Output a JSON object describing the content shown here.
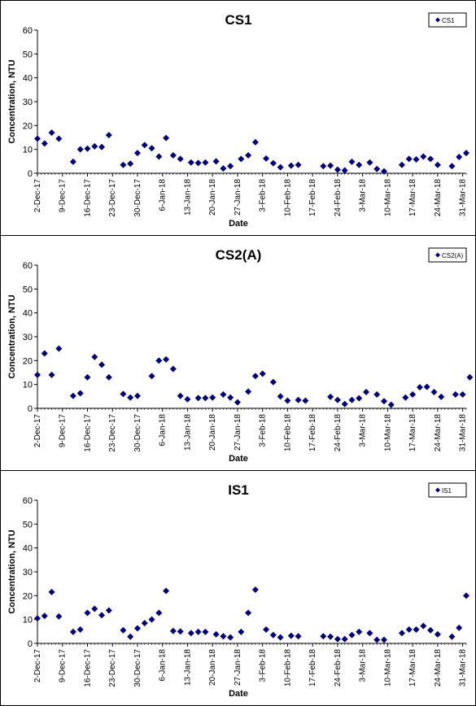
{
  "chart_data": [
    {
      "type": "scatter",
      "title": "CS1",
      "ylabel": "Concentration, NTU",
      "xlabel": "Date",
      "ylim": [
        0,
        60
      ],
      "yticks": [
        0,
        10,
        20,
        30,
        40,
        50,
        60
      ],
      "xlim": [
        "2017-12-02",
        "2018-04-01"
      ],
      "xtick_labels": [
        "2-Dec-17",
        "9-Dec-17",
        "16-Dec-17",
        "23-Dec-17",
        "30-Dec-17",
        "6-Jan-18",
        "13-Jan-18",
        "20-Jan-18",
        "27-Jan-18",
        "3-Feb-18",
        "10-Feb-18",
        "17-Feb-18",
        "24-Feb-18",
        "3-Mar-18",
        "10-Mar-18",
        "17-Mar-18",
        "24-Mar-18",
        "31-Mar-18"
      ],
      "legend": "top-right",
      "grid": false,
      "marker_color": "#00008b",
      "series": [
        {
          "name": "CS1",
          "points": [
            [
              "2017-12-02",
              14.5
            ],
            [
              "2017-12-04",
              12.5
            ],
            [
              "2017-12-06",
              17.0
            ],
            [
              "2017-12-08",
              14.5
            ],
            [
              "2017-12-12",
              4.8
            ],
            [
              "2017-12-14",
              10.0
            ],
            [
              "2017-12-16",
              10.3
            ],
            [
              "2017-12-18",
              11.3
            ],
            [
              "2017-12-20",
              11.0
            ],
            [
              "2017-12-22",
              16.0
            ],
            [
              "2017-12-26",
              3.5
            ],
            [
              "2017-12-28",
              4.0
            ],
            [
              "2017-12-30",
              8.5
            ],
            [
              "2018-01-01",
              11.8
            ],
            [
              "2018-01-03",
              10.5
            ],
            [
              "2018-01-05",
              7.0
            ],
            [
              "2018-01-07",
              14.8
            ],
            [
              "2018-01-09",
              7.5
            ],
            [
              "2018-01-11",
              6.0
            ],
            [
              "2018-01-14",
              4.5
            ],
            [
              "2018-01-16",
              4.3
            ],
            [
              "2018-01-18",
              4.5
            ],
            [
              "2018-01-21",
              5.0
            ],
            [
              "2018-01-23",
              2.0
            ],
            [
              "2018-01-25",
              3.0
            ],
            [
              "2018-01-28",
              6.0
            ],
            [
              "2018-01-30",
              7.5
            ],
            [
              "2018-02-01",
              13.0
            ],
            [
              "2018-02-04",
              6.2
            ],
            [
              "2018-02-06",
              4.2
            ],
            [
              "2018-02-08",
              2.5
            ],
            [
              "2018-02-11",
              3.2
            ],
            [
              "2018-02-13",
              3.5
            ],
            [
              "2018-02-20",
              3.0
            ],
            [
              "2018-02-22",
              3.2
            ],
            [
              "2018-02-24",
              1.5
            ],
            [
              "2018-02-26",
              1.2
            ],
            [
              "2018-02-28",
              4.8
            ],
            [
              "2018-03-02",
              3.5
            ],
            [
              "2018-03-05",
              4.5
            ],
            [
              "2018-03-07",
              1.8
            ],
            [
              "2018-03-09",
              0.8
            ],
            [
              "2018-03-14",
              3.5
            ],
            [
              "2018-03-16",
              6.0
            ],
            [
              "2018-03-18",
              5.8
            ],
            [
              "2018-03-20",
              7.0
            ],
            [
              "2018-03-22",
              6.0
            ],
            [
              "2018-03-24",
              3.5
            ],
            [
              "2018-03-28",
              3.0
            ],
            [
              "2018-03-30",
              6.8
            ],
            [
              "2018-04-01",
              8.5
            ]
          ]
        }
      ]
    },
    {
      "type": "scatter",
      "title": "CS2(A)",
      "ylabel": "Concentration, NTU",
      "xlabel": "Date",
      "ylim": [
        0,
        60
      ],
      "yticks": [
        0,
        10,
        20,
        30,
        40,
        50,
        60
      ],
      "xlim": [
        "2017-12-02",
        "2018-04-01"
      ],
      "xtick_labels": [
        "2-Dec-17",
        "9-Dec-17",
        "16-Dec-17",
        "23-Dec-17",
        "30-Dec-17",
        "6-Jan-18",
        "13-Jan-18",
        "20-Jan-18",
        "27-Jan-18",
        "3-Feb-18",
        "10-Feb-18",
        "17-Feb-18",
        "24-Feb-18",
        "3-Mar-18",
        "10-Mar-18",
        "17-Mar-18",
        "24-Mar-18",
        "31-Mar-18"
      ],
      "legend": "top-right",
      "grid": false,
      "marker_color": "#00008b",
      "series": [
        {
          "name": "CS2(A)",
          "points": [
            [
              "2017-12-02",
              14.0
            ],
            [
              "2017-12-04",
              23.0
            ],
            [
              "2017-12-06",
              14.0
            ],
            [
              "2017-12-08",
              25.0
            ],
            [
              "2017-12-12",
              5.2
            ],
            [
              "2017-12-14",
              6.3
            ],
            [
              "2017-12-16",
              13.0
            ],
            [
              "2017-12-18",
              21.5
            ],
            [
              "2017-12-20",
              18.3
            ],
            [
              "2017-12-22",
              13.0
            ],
            [
              "2017-12-26",
              6.0
            ],
            [
              "2017-12-28",
              4.5
            ],
            [
              "2017-12-30",
              5.2
            ],
            [
              "2018-01-03",
              13.5
            ],
            [
              "2018-01-05",
              20.0
            ],
            [
              "2018-01-07",
              20.5
            ],
            [
              "2018-01-09",
              16.5
            ],
            [
              "2018-01-11",
              5.2
            ],
            [
              "2018-01-13",
              3.8
            ],
            [
              "2018-01-16",
              4.3
            ],
            [
              "2018-01-18",
              4.3
            ],
            [
              "2018-01-20",
              4.5
            ],
            [
              "2018-01-23",
              5.8
            ],
            [
              "2018-01-25",
              4.5
            ],
            [
              "2018-01-27",
              2.5
            ],
            [
              "2018-01-30",
              7.0
            ],
            [
              "2018-02-01",
              13.5
            ],
            [
              "2018-02-03",
              14.5
            ],
            [
              "2018-02-06",
              11.0
            ],
            [
              "2018-02-08",
              5.0
            ],
            [
              "2018-02-10",
              3.2
            ],
            [
              "2018-02-13",
              3.5
            ],
            [
              "2018-02-15",
              3.2
            ],
            [
              "2018-02-22",
              4.8
            ],
            [
              "2018-02-24",
              3.5
            ],
            [
              "2018-02-26",
              1.8
            ],
            [
              "2018-02-28",
              3.5
            ],
            [
              "2018-03-02",
              4.2
            ],
            [
              "2018-03-04",
              6.8
            ],
            [
              "2018-03-07",
              5.8
            ],
            [
              "2018-03-09",
              3.0
            ],
            [
              "2018-03-11",
              1.5
            ],
            [
              "2018-03-15",
              4.5
            ],
            [
              "2018-03-17",
              5.8
            ],
            [
              "2018-03-19",
              8.8
            ],
            [
              "2018-03-21",
              9.0
            ],
            [
              "2018-03-23",
              6.8
            ],
            [
              "2018-03-25",
              4.8
            ],
            [
              "2018-03-29",
              5.8
            ],
            [
              "2018-03-31",
              5.8
            ],
            [
              "2018-04-02",
              13.0
            ]
          ]
        }
      ]
    },
    {
      "type": "scatter",
      "title": "IS1",
      "ylabel": "Concentration, NTU",
      "xlabel": "Date",
      "ylim": [
        0,
        60
      ],
      "yticks": [
        0,
        10,
        20,
        30,
        40,
        50,
        60
      ],
      "xlim": [
        "2017-12-02",
        "2018-04-01"
      ],
      "xtick_labels": [
        "2-Dec-17",
        "9-Dec-17",
        "16-Dec-17",
        "23-Dec-17",
        "30-Dec-17",
        "6-Jan-18",
        "13-Jan-18",
        "20-Jan-18",
        "27-Jan-18",
        "3-Feb-18",
        "10-Feb-18",
        "17-Feb-18",
        "24-Feb-18",
        "3-Mar-18",
        "10-Mar-18",
        "17-Mar-18",
        "24-Mar-18",
        "31-Mar-18"
      ],
      "legend": "top-right",
      "grid": false,
      "marker_color": "#00008b",
      "series": [
        {
          "name": "IS1",
          "points": [
            [
              "2017-12-02",
              10.5
            ],
            [
              "2017-12-04",
              11.5
            ],
            [
              "2017-12-06",
              21.5
            ],
            [
              "2017-12-08",
              11.3
            ],
            [
              "2017-12-12",
              4.8
            ],
            [
              "2017-12-14",
              5.8
            ],
            [
              "2017-12-16",
              12.8
            ],
            [
              "2017-12-18",
              14.5
            ],
            [
              "2017-12-20",
              11.8
            ],
            [
              "2017-12-22",
              13.8
            ],
            [
              "2017-12-26",
              5.5
            ],
            [
              "2017-12-28",
              2.8
            ],
            [
              "2017-12-30",
              6.3
            ],
            [
              "2018-01-01",
              8.5
            ],
            [
              "2018-01-03",
              10.0
            ],
            [
              "2018-01-05",
              12.8
            ],
            [
              "2018-01-07",
              22.0
            ],
            [
              "2018-01-09",
              5.2
            ],
            [
              "2018-01-11",
              5.0
            ],
            [
              "2018-01-14",
              4.3
            ],
            [
              "2018-01-16",
              4.8
            ],
            [
              "2018-01-18",
              4.8
            ],
            [
              "2018-01-21",
              3.8
            ],
            [
              "2018-01-23",
              3.0
            ],
            [
              "2018-01-25",
              2.5
            ],
            [
              "2018-01-28",
              4.8
            ],
            [
              "2018-01-30",
              12.8
            ],
            [
              "2018-02-01",
              22.5
            ],
            [
              "2018-02-04",
              5.8
            ],
            [
              "2018-02-06",
              3.5
            ],
            [
              "2018-02-08",
              2.5
            ],
            [
              "2018-02-11",
              3.2
            ],
            [
              "2018-02-13",
              3.0
            ],
            [
              "2018-02-20",
              3.0
            ],
            [
              "2018-02-22",
              2.8
            ],
            [
              "2018-02-24",
              1.8
            ],
            [
              "2018-02-26",
              1.8
            ],
            [
              "2018-02-28",
              3.5
            ],
            [
              "2018-03-02",
              4.8
            ],
            [
              "2018-03-05",
              4.3
            ],
            [
              "2018-03-07",
              1.5
            ],
            [
              "2018-03-09",
              1.5
            ],
            [
              "2018-03-14",
              4.3
            ],
            [
              "2018-03-16",
              5.8
            ],
            [
              "2018-03-18",
              5.8
            ],
            [
              "2018-03-20",
              7.3
            ],
            [
              "2018-03-22",
              5.5
            ],
            [
              "2018-03-24",
              3.8
            ],
            [
              "2018-03-28",
              2.8
            ],
            [
              "2018-03-30",
              6.5
            ],
            [
              "2018-04-01",
              20.0
            ]
          ]
        }
      ]
    }
  ]
}
